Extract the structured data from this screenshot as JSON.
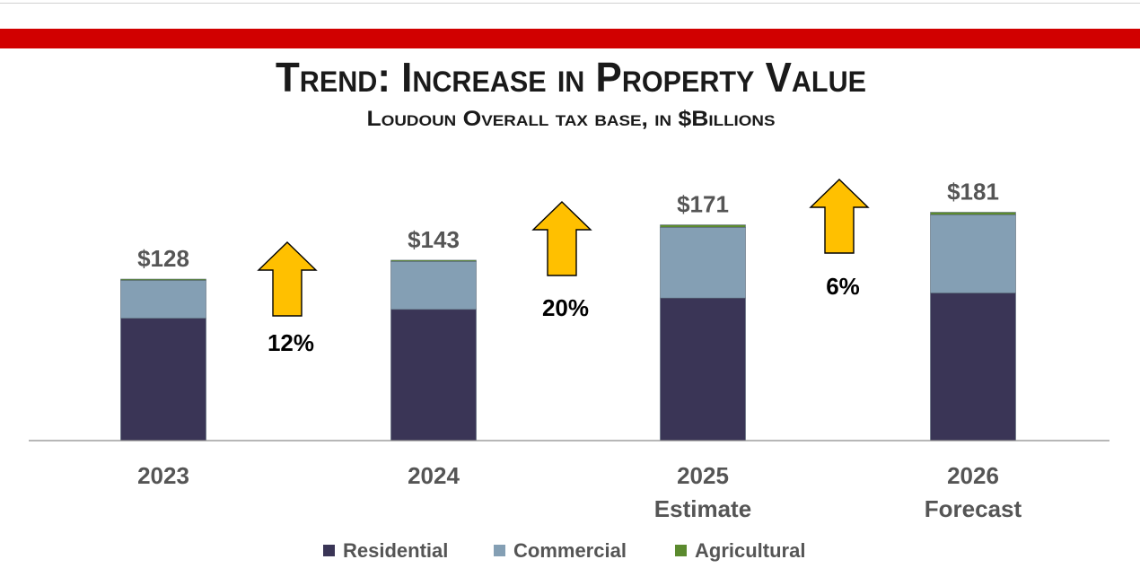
{
  "chart_data": {
    "type": "bar",
    "stacked": true,
    "title": "Trend: Increase in Property Value",
    "subtitle": "Loudoun Overall tax base, in $Billions",
    "categories": [
      [
        "2023"
      ],
      [
        "2024"
      ],
      [
        "2025",
        "Estimate"
      ],
      [
        "2026",
        "Forecast"
      ]
    ],
    "totals": [
      "$128",
      "$143",
      "$171",
      "$181"
    ],
    "total_values": [
      128,
      143,
      171,
      181
    ],
    "series": [
      {
        "name": "Residential",
        "color": "#3a3556",
        "values": [
          97,
          104,
          113,
          117
        ]
      },
      {
        "name": "Commercial",
        "color": "#849fb4",
        "values": [
          30,
          38,
          56,
          62
        ]
      },
      {
        "name": "Agricultural",
        "color": "#5b8a2e",
        "values": [
          1,
          1,
          2,
          2
        ]
      }
    ],
    "growth_annotations": [
      {
        "label": "12%",
        "between": [
          "2023",
          "2024"
        ]
      },
      {
        "label": "20%",
        "between": [
          "2024",
          "2025"
        ]
      },
      {
        "label": "6%",
        "between": [
          "2025",
          "2026"
        ]
      }
    ],
    "arrow_color": "#ffc000",
    "header_bar_color": "#d10000",
    "ylim": [
      0,
      200
    ],
    "grid": false,
    "legend_position": "bottom"
  }
}
